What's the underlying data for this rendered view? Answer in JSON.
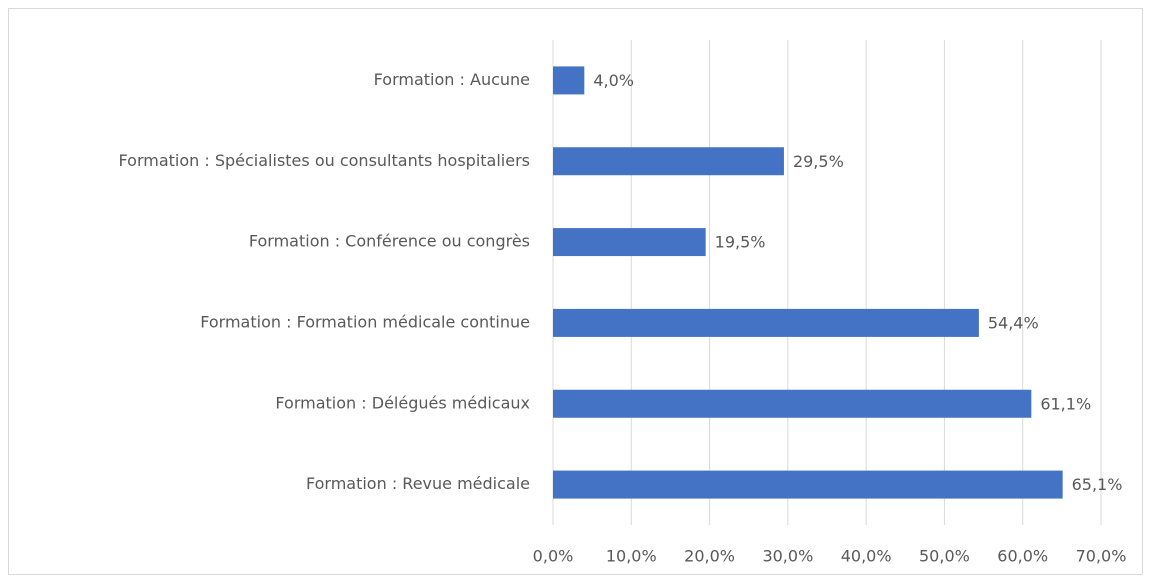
{
  "chart_data": {
    "type": "hbar",
    "categories": [
      "Formation :  Aucune",
      "Formation :  Spécialistes ou consultants hospitaliers",
      "Formation :  Conférence ou congrès",
      "Formation :  Formation médicale continue",
      "Formation :  Délégués médicaux",
      "Formation : Revue médicale"
    ],
    "values": [
      4.0,
      29.5,
      19.5,
      54.4,
      61.1,
      65.1
    ],
    "value_labels": [
      "4,0%",
      "29,5%",
      "19,5%",
      "54,4%",
      "61,1%",
      "65,1%"
    ],
    "color": "#4472c4",
    "xlim": [
      0,
      70
    ],
    "xticks": [
      {
        "value": 0,
        "label": "0,0%"
      },
      {
        "value": 10,
        "label": "10,0%"
      },
      {
        "value": 20,
        "label": "20,0%"
      },
      {
        "value": 30,
        "label": "30,0%"
      },
      {
        "value": 40,
        "label": "40,0%"
      },
      {
        "value": 50,
        "label": "50,0%"
      },
      {
        "value": 60,
        "label": "60,0%"
      },
      {
        "value": 70,
        "label": "70,0%"
      }
    ],
    "grid": true
  }
}
